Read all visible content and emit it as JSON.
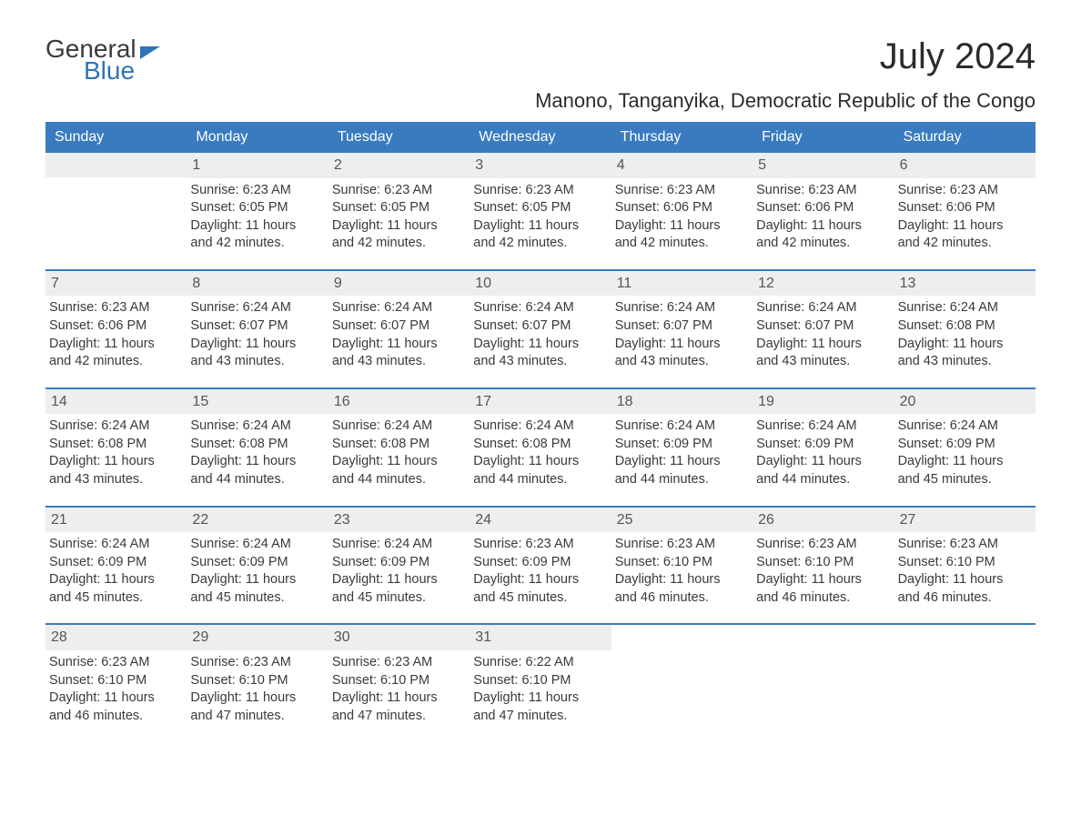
{
  "logo": {
    "top": "General",
    "bottom": "Blue"
  },
  "title": "July 2024",
  "location": "Manono, Tanganyika, Democratic Republic of the Congo",
  "days_of_week": [
    "Sunday",
    "Monday",
    "Tuesday",
    "Wednesday",
    "Thursday",
    "Friday",
    "Saturday"
  ],
  "colors": {
    "header_bg": "#3a7bbf",
    "header_text": "#ffffff",
    "daynum_bg": "#eeeeee",
    "daynum_text": "#555555",
    "body_text": "#3a3a3a",
    "accent": "#2f74b5",
    "background": "#ffffff"
  },
  "typography": {
    "title_fontsize": 40,
    "location_fontsize": 22,
    "dow_fontsize": 16,
    "cell_fontsize": 14.5,
    "logo_fontsize": 28
  },
  "layout": {
    "columns": 7,
    "rows": 5,
    "first_weekday_offset": 1,
    "last_day": 31
  },
  "weeks": [
    [
      null,
      {
        "n": "1",
        "sr": "Sunrise: 6:23 AM",
        "ss": "Sunset: 6:05 PM",
        "d1": "Daylight: 11 hours",
        "d2": "and 42 minutes."
      },
      {
        "n": "2",
        "sr": "Sunrise: 6:23 AM",
        "ss": "Sunset: 6:05 PM",
        "d1": "Daylight: 11 hours",
        "d2": "and 42 minutes."
      },
      {
        "n": "3",
        "sr": "Sunrise: 6:23 AM",
        "ss": "Sunset: 6:05 PM",
        "d1": "Daylight: 11 hours",
        "d2": "and 42 minutes."
      },
      {
        "n": "4",
        "sr": "Sunrise: 6:23 AM",
        "ss": "Sunset: 6:06 PM",
        "d1": "Daylight: 11 hours",
        "d2": "and 42 minutes."
      },
      {
        "n": "5",
        "sr": "Sunrise: 6:23 AM",
        "ss": "Sunset: 6:06 PM",
        "d1": "Daylight: 11 hours",
        "d2": "and 42 minutes."
      },
      {
        "n": "6",
        "sr": "Sunrise: 6:23 AM",
        "ss": "Sunset: 6:06 PM",
        "d1": "Daylight: 11 hours",
        "d2": "and 42 minutes."
      }
    ],
    [
      {
        "n": "7",
        "sr": "Sunrise: 6:23 AM",
        "ss": "Sunset: 6:06 PM",
        "d1": "Daylight: 11 hours",
        "d2": "and 42 minutes."
      },
      {
        "n": "8",
        "sr": "Sunrise: 6:24 AM",
        "ss": "Sunset: 6:07 PM",
        "d1": "Daylight: 11 hours",
        "d2": "and 43 minutes."
      },
      {
        "n": "9",
        "sr": "Sunrise: 6:24 AM",
        "ss": "Sunset: 6:07 PM",
        "d1": "Daylight: 11 hours",
        "d2": "and 43 minutes."
      },
      {
        "n": "10",
        "sr": "Sunrise: 6:24 AM",
        "ss": "Sunset: 6:07 PM",
        "d1": "Daylight: 11 hours",
        "d2": "and 43 minutes."
      },
      {
        "n": "11",
        "sr": "Sunrise: 6:24 AM",
        "ss": "Sunset: 6:07 PM",
        "d1": "Daylight: 11 hours",
        "d2": "and 43 minutes."
      },
      {
        "n": "12",
        "sr": "Sunrise: 6:24 AM",
        "ss": "Sunset: 6:07 PM",
        "d1": "Daylight: 11 hours",
        "d2": "and 43 minutes."
      },
      {
        "n": "13",
        "sr": "Sunrise: 6:24 AM",
        "ss": "Sunset: 6:08 PM",
        "d1": "Daylight: 11 hours",
        "d2": "and 43 minutes."
      }
    ],
    [
      {
        "n": "14",
        "sr": "Sunrise: 6:24 AM",
        "ss": "Sunset: 6:08 PM",
        "d1": "Daylight: 11 hours",
        "d2": "and 43 minutes."
      },
      {
        "n": "15",
        "sr": "Sunrise: 6:24 AM",
        "ss": "Sunset: 6:08 PM",
        "d1": "Daylight: 11 hours",
        "d2": "and 44 minutes."
      },
      {
        "n": "16",
        "sr": "Sunrise: 6:24 AM",
        "ss": "Sunset: 6:08 PM",
        "d1": "Daylight: 11 hours",
        "d2": "and 44 minutes."
      },
      {
        "n": "17",
        "sr": "Sunrise: 6:24 AM",
        "ss": "Sunset: 6:08 PM",
        "d1": "Daylight: 11 hours",
        "d2": "and 44 minutes."
      },
      {
        "n": "18",
        "sr": "Sunrise: 6:24 AM",
        "ss": "Sunset: 6:09 PM",
        "d1": "Daylight: 11 hours",
        "d2": "and 44 minutes."
      },
      {
        "n": "19",
        "sr": "Sunrise: 6:24 AM",
        "ss": "Sunset: 6:09 PM",
        "d1": "Daylight: 11 hours",
        "d2": "and 44 minutes."
      },
      {
        "n": "20",
        "sr": "Sunrise: 6:24 AM",
        "ss": "Sunset: 6:09 PM",
        "d1": "Daylight: 11 hours",
        "d2": "and 45 minutes."
      }
    ],
    [
      {
        "n": "21",
        "sr": "Sunrise: 6:24 AM",
        "ss": "Sunset: 6:09 PM",
        "d1": "Daylight: 11 hours",
        "d2": "and 45 minutes."
      },
      {
        "n": "22",
        "sr": "Sunrise: 6:24 AM",
        "ss": "Sunset: 6:09 PM",
        "d1": "Daylight: 11 hours",
        "d2": "and 45 minutes."
      },
      {
        "n": "23",
        "sr": "Sunrise: 6:24 AM",
        "ss": "Sunset: 6:09 PM",
        "d1": "Daylight: 11 hours",
        "d2": "and 45 minutes."
      },
      {
        "n": "24",
        "sr": "Sunrise: 6:23 AM",
        "ss": "Sunset: 6:09 PM",
        "d1": "Daylight: 11 hours",
        "d2": "and 45 minutes."
      },
      {
        "n": "25",
        "sr": "Sunrise: 6:23 AM",
        "ss": "Sunset: 6:10 PM",
        "d1": "Daylight: 11 hours",
        "d2": "and 46 minutes."
      },
      {
        "n": "26",
        "sr": "Sunrise: 6:23 AM",
        "ss": "Sunset: 6:10 PM",
        "d1": "Daylight: 11 hours",
        "d2": "and 46 minutes."
      },
      {
        "n": "27",
        "sr": "Sunrise: 6:23 AM",
        "ss": "Sunset: 6:10 PM",
        "d1": "Daylight: 11 hours",
        "d2": "and 46 minutes."
      }
    ],
    [
      {
        "n": "28",
        "sr": "Sunrise: 6:23 AM",
        "ss": "Sunset: 6:10 PM",
        "d1": "Daylight: 11 hours",
        "d2": "and 46 minutes."
      },
      {
        "n": "29",
        "sr": "Sunrise: 6:23 AM",
        "ss": "Sunset: 6:10 PM",
        "d1": "Daylight: 11 hours",
        "d2": "and 47 minutes."
      },
      {
        "n": "30",
        "sr": "Sunrise: 6:23 AM",
        "ss": "Sunset: 6:10 PM",
        "d1": "Daylight: 11 hours",
        "d2": "and 47 minutes."
      },
      {
        "n": "31",
        "sr": "Sunrise: 6:22 AM",
        "ss": "Sunset: 6:10 PM",
        "d1": "Daylight: 11 hours",
        "d2": "and 47 minutes."
      },
      null,
      null,
      null
    ]
  ]
}
